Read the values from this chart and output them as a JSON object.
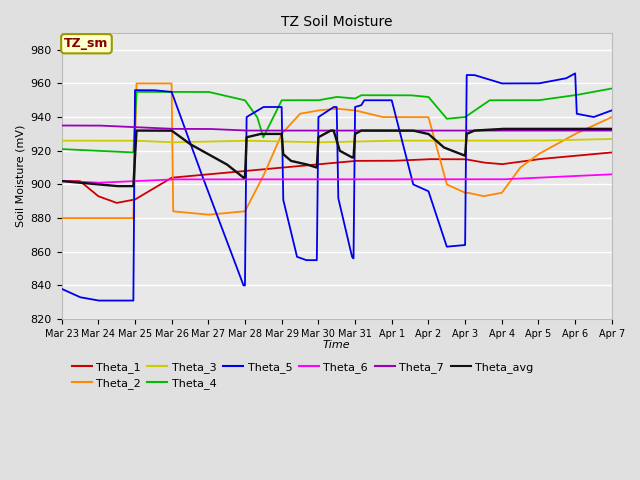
{
  "title": "TZ Soil Moisture",
  "ylabel": "Soil Moisture (mV)",
  "xlabel": "Time",
  "ylim": [
    820,
    990
  ],
  "xlim": [
    0,
    360
  ],
  "fig_bg": "#e0e0e0",
  "plot_bg": "#e8e8e8",
  "colors": {
    "Theta_1": "#cc0000",
    "Theta_2": "#ff8800",
    "Theta_3": "#cccc00",
    "Theta_4": "#00bb00",
    "Theta_5": "#0000ee",
    "Theta_6": "#ff00ff",
    "Theta_7": "#9900bb",
    "Theta_avg": "#111111"
  },
  "tick_labels": [
    "Mar 23",
    "Mar 24",
    "Mar 25",
    "Mar 26",
    "Mar 27",
    "Mar 28",
    "Mar 29",
    "Mar 30",
    "Mar 31",
    "Apr 1",
    "Apr 2",
    "Apr 3",
    "Apr 4",
    "Apr 5",
    "Apr 6",
    "Apr 7"
  ],
  "tick_positions": [
    0,
    24,
    48,
    72,
    96,
    120,
    144,
    168,
    192,
    216,
    240,
    264,
    288,
    312,
    336,
    360
  ],
  "yticks": [
    820,
    840,
    860,
    880,
    900,
    920,
    940,
    960,
    980
  ],
  "label_box": {
    "text": "TZ_sm",
    "bg_color": "#ffffcc",
    "text_color": "#880000",
    "border_color": "#999900"
  },
  "legend_order": [
    "Theta_1",
    "Theta_2",
    "Theta_3",
    "Theta_4",
    "Theta_5",
    "Theta_6",
    "Theta_7",
    "Theta_avg"
  ]
}
